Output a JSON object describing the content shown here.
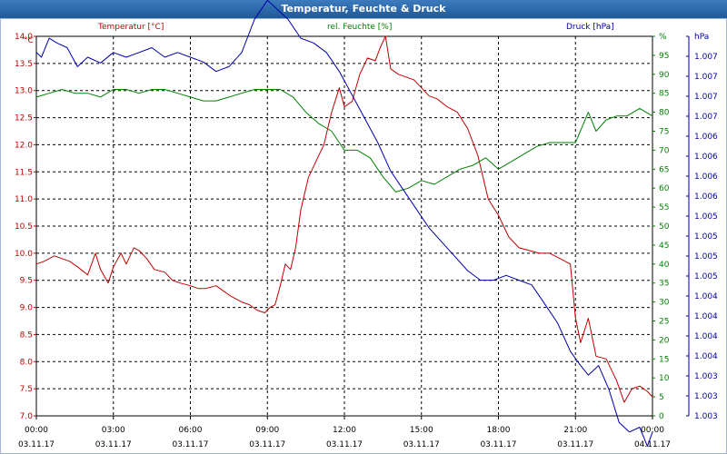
{
  "window": {
    "title": "Temperatur, Feuchte & Druck"
  },
  "colors": {
    "temperature": "#c00000",
    "humidity": "#008000",
    "pressure": "#0000aa",
    "grid": "#000000"
  },
  "chart_data": {
    "type": "line",
    "title": "Temperatur, Feuchte & Druck",
    "grid": true,
    "x_ticks": [
      {
        "time": "00:00",
        "date": "03.11.17"
      },
      {
        "time": "03:00",
        "date": "03.11.17"
      },
      {
        "time": "06:00",
        "date": "03.11.17"
      },
      {
        "time": "09:00",
        "date": "03.11.17"
      },
      {
        "time": "12:00",
        "date": "03.11.17"
      },
      {
        "time": "15:00",
        "date": "03.11.17"
      },
      {
        "time": "18:00",
        "date": "03.11.17"
      },
      {
        "time": "21:00",
        "date": "03.11.17"
      },
      {
        "time": "00:00",
        "date": "04.11.17"
      }
    ],
    "x_range_hours": [
      0,
      24
    ],
    "axes": {
      "temperature": {
        "label": "Temperatur [°C]",
        "unit": "°C",
        "ylim": [
          7.0,
          14.0
        ],
        "ticks": [
          "7.0",
          "7.5",
          "8.0",
          "8.5",
          "9.0",
          "9.5",
          "10.0",
          "10.5",
          "11.0",
          "11.5",
          "12.0",
          "12.5",
          "13.0",
          "13.5",
          "14.0"
        ]
      },
      "humidity": {
        "label": "rel. Feuchte [%]",
        "unit": "%",
        "ylim": [
          0,
          100
        ],
        "ticks": [
          "0",
          "5",
          "10",
          "15",
          "20",
          "25",
          "30",
          "35",
          "40",
          "45",
          "50",
          "55",
          "60",
          "65",
          "70",
          "75",
          "80",
          "85",
          "90",
          "95",
          "%"
        ]
      },
      "pressure": {
        "label": "Druck [hPa]",
        "unit": "hPa",
        "ylim": [
          1.003,
          1.007
        ],
        "ticks": [
          "1.003",
          "1.003",
          "1.003",
          "1.004",
          "1.004",
          "1.004",
          "1.004",
          "1.005",
          "1.005",
          "1.005",
          "1.005",
          "1.006",
          "1.006",
          "1.006",
          "1.006",
          "1.007",
          "1.007",
          "1.007",
          "1.007",
          "hPa"
        ]
      }
    },
    "series": [
      {
        "name": "Temperatur [°C]",
        "axis": "temperature",
        "points": [
          [
            0.0,
            9.8
          ],
          [
            0.3,
            9.85
          ],
          [
            0.7,
            9.95
          ],
          [
            1.0,
            9.9
          ],
          [
            1.3,
            9.85
          ],
          [
            1.6,
            9.75
          ],
          [
            2.0,
            9.6
          ],
          [
            2.3,
            10.0
          ],
          [
            2.5,
            9.7
          ],
          [
            2.8,
            9.45
          ],
          [
            3.0,
            9.75
          ],
          [
            3.3,
            10.0
          ],
          [
            3.5,
            9.8
          ],
          [
            3.8,
            10.1
          ],
          [
            4.0,
            10.05
          ],
          [
            4.3,
            9.9
          ],
          [
            4.6,
            9.7
          ],
          [
            5.0,
            9.65
          ],
          [
            5.3,
            9.5
          ],
          [
            5.6,
            9.45
          ],
          [
            6.0,
            9.4
          ],
          [
            6.3,
            9.35
          ],
          [
            6.6,
            9.35
          ],
          [
            7.0,
            9.4
          ],
          [
            7.3,
            9.3
          ],
          [
            7.6,
            9.2
          ],
          [
            8.0,
            9.1
          ],
          [
            8.3,
            9.05
          ],
          [
            8.6,
            8.95
          ],
          [
            8.9,
            8.9
          ],
          [
            9.1,
            9.0
          ],
          [
            9.3,
            9.05
          ],
          [
            9.5,
            9.4
          ],
          [
            9.7,
            9.8
          ],
          [
            9.9,
            9.7
          ],
          [
            10.1,
            10.1
          ],
          [
            10.3,
            10.8
          ],
          [
            10.6,
            11.4
          ],
          [
            10.9,
            11.7
          ],
          [
            11.2,
            12.0
          ],
          [
            11.5,
            12.6
          ],
          [
            11.8,
            13.05
          ],
          [
            12.0,
            12.7
          ],
          [
            12.3,
            12.8
          ],
          [
            12.6,
            13.3
          ],
          [
            12.9,
            13.6
          ],
          [
            13.2,
            13.55
          ],
          [
            13.4,
            13.8
          ],
          [
            13.6,
            14.0
          ],
          [
            13.8,
            13.4
          ],
          [
            14.1,
            13.3
          ],
          [
            14.4,
            13.25
          ],
          [
            14.7,
            13.2
          ],
          [
            15.0,
            13.05
          ],
          [
            15.3,
            12.9
          ],
          [
            15.6,
            12.85
          ],
          [
            16.0,
            12.7
          ],
          [
            16.4,
            12.6
          ],
          [
            16.8,
            12.3
          ],
          [
            17.2,
            11.8
          ],
          [
            17.6,
            11.0
          ],
          [
            18.0,
            10.7
          ],
          [
            18.4,
            10.3
          ],
          [
            18.8,
            10.1
          ],
          [
            19.2,
            10.05
          ],
          [
            19.6,
            10.0
          ],
          [
            20.0,
            10.0
          ],
          [
            20.4,
            9.9
          ],
          [
            20.8,
            9.8
          ],
          [
            21.0,
            8.8
          ],
          [
            21.2,
            8.35
          ],
          [
            21.5,
            8.8
          ],
          [
            21.8,
            8.1
          ],
          [
            22.2,
            8.05
          ],
          [
            22.6,
            7.65
          ],
          [
            22.9,
            7.25
          ],
          [
            23.2,
            7.5
          ],
          [
            23.5,
            7.55
          ],
          [
            23.8,
            7.45
          ],
          [
            24.0,
            7.35
          ]
        ]
      },
      {
        "name": "rel. Feuchte [%]",
        "axis": "humidity",
        "points": [
          [
            0.0,
            84
          ],
          [
            0.5,
            85
          ],
          [
            1.0,
            86
          ],
          [
            1.5,
            85
          ],
          [
            2.0,
            85
          ],
          [
            2.5,
            84
          ],
          [
            3.0,
            86
          ],
          [
            3.5,
            86
          ],
          [
            4.0,
            85
          ],
          [
            4.5,
            86
          ],
          [
            5.0,
            86
          ],
          [
            5.5,
            85
          ],
          [
            6.0,
            84
          ],
          [
            6.5,
            83
          ],
          [
            7.0,
            83
          ],
          [
            7.5,
            84
          ],
          [
            8.0,
            85
          ],
          [
            8.5,
            86
          ],
          [
            9.0,
            86
          ],
          [
            9.5,
            86
          ],
          [
            10.0,
            84
          ],
          [
            10.5,
            80
          ],
          [
            11.0,
            77
          ],
          [
            11.5,
            75
          ],
          [
            12.0,
            70
          ],
          [
            12.5,
            70
          ],
          [
            13.0,
            68
          ],
          [
            13.5,
            63
          ],
          [
            14.0,
            59
          ],
          [
            14.5,
            60
          ],
          [
            15.0,
            62
          ],
          [
            15.5,
            61
          ],
          [
            16.0,
            63
          ],
          [
            16.5,
            65
          ],
          [
            17.0,
            66
          ],
          [
            17.5,
            68
          ],
          [
            18.0,
            65
          ],
          [
            18.5,
            67
          ],
          [
            19.0,
            69
          ],
          [
            19.5,
            71
          ],
          [
            20.0,
            72
          ],
          [
            20.5,
            72
          ],
          [
            21.0,
            72
          ],
          [
            21.5,
            80
          ],
          [
            21.8,
            75
          ],
          [
            22.2,
            78
          ],
          [
            22.6,
            79
          ],
          [
            23.0,
            79
          ],
          [
            23.5,
            81
          ],
          [
            24.0,
            79
          ]
        ]
      },
      {
        "name": "Druck [hPa]",
        "axis": "pressure",
        "points": [
          [
            0.0,
            1.00683
          ],
          [
            0.2,
            1.00678
          ],
          [
            0.5,
            1.00698
          ],
          [
            0.8,
            1.00693
          ],
          [
            1.2,
            1.00688
          ],
          [
            1.6,
            1.00668
          ],
          [
            2.0,
            1.00678
          ],
          [
            2.5,
            1.00672
          ],
          [
            3.0,
            1.00683
          ],
          [
            3.5,
            1.00678
          ],
          [
            4.0,
            1.00683
          ],
          [
            4.5,
            1.00688
          ],
          [
            5.0,
            1.00678
          ],
          [
            5.5,
            1.00683
          ],
          [
            6.0,
            1.00678
          ],
          [
            6.5,
            1.00673
          ],
          [
            7.0,
            1.00663
          ],
          [
            7.5,
            1.00668
          ],
          [
            8.0,
            1.00683
          ],
          [
            8.5,
            1.00718
          ],
          [
            9.0,
            1.00738
          ],
          [
            9.4,
            1.00728
          ],
          [
            9.8,
            1.00718
          ],
          [
            10.3,
            1.00698
          ],
          [
            10.8,
            1.00693
          ],
          [
            11.3,
            1.00683
          ],
          [
            11.8,
            1.00663
          ],
          [
            12.3,
            1.00638
          ],
          [
            12.8,
            1.00613
          ],
          [
            13.3,
            1.00588
          ],
          [
            13.8,
            1.00558
          ],
          [
            14.3,
            1.00538
          ],
          [
            14.8,
            1.00518
          ],
          [
            15.3,
            1.00498
          ],
          [
            15.8,
            1.00483
          ],
          [
            16.3,
            1.00468
          ],
          [
            16.8,
            1.00453
          ],
          [
            17.3,
            1.00443
          ],
          [
            17.8,
            1.00443
          ],
          [
            18.3,
            1.00448
          ],
          [
            18.8,
            1.00443
          ],
          [
            19.3,
            1.00438
          ],
          [
            19.8,
            1.00418
          ],
          [
            20.3,
            1.00398
          ],
          [
            20.8,
            1.00368
          ],
          [
            21.2,
            1.00353
          ],
          [
            21.5,
            1.00343
          ],
          [
            21.9,
            1.00353
          ],
          [
            22.3,
            1.00328
          ],
          [
            22.7,
            1.00293
          ],
          [
            23.1,
            1.00283
          ],
          [
            23.5,
            1.00288
          ],
          [
            23.8,
            1.00268
          ],
          [
            24.0,
            1.00283
          ]
        ]
      }
    ]
  }
}
